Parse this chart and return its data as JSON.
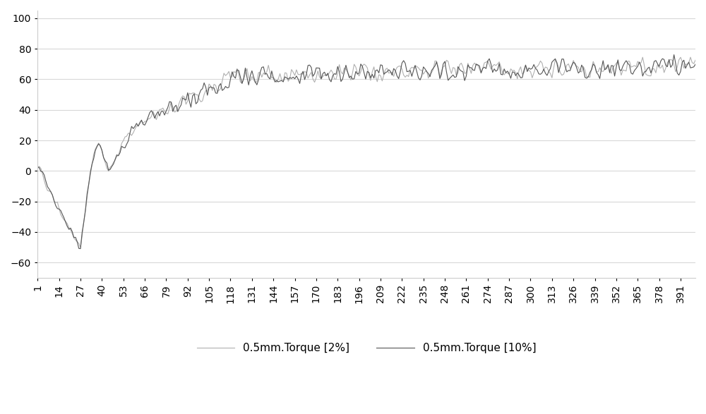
{
  "title": "",
  "xlabel": "",
  "ylabel": "",
  "ylim": [
    -70,
    105
  ],
  "yticks": [
    -60,
    -40,
    -20,
    0,
    20,
    40,
    60,
    80,
    100
  ],
  "xtick_labels": [
    "1",
    "14",
    "27",
    "40",
    "53",
    "66",
    "79",
    "92",
    "105",
    "118",
    "131",
    "144",
    "157",
    "170",
    "183",
    "196",
    "209",
    "222",
    "235",
    "248",
    "261",
    "274",
    "287",
    "300",
    "313",
    "326",
    "339",
    "352",
    "365",
    "378",
    "391"
  ],
  "line1_color": "#b0b0b0",
  "line2_color": "#555555",
  "line1_label": "0.5mm.Torque [2%]",
  "line2_label": "0.5mm.Torque [10%]",
  "background_color": "#ffffff",
  "grid_color": "#d8d8d8",
  "n_points": 400,
  "legend_fontsize": 11,
  "tick_fontsize": 10
}
